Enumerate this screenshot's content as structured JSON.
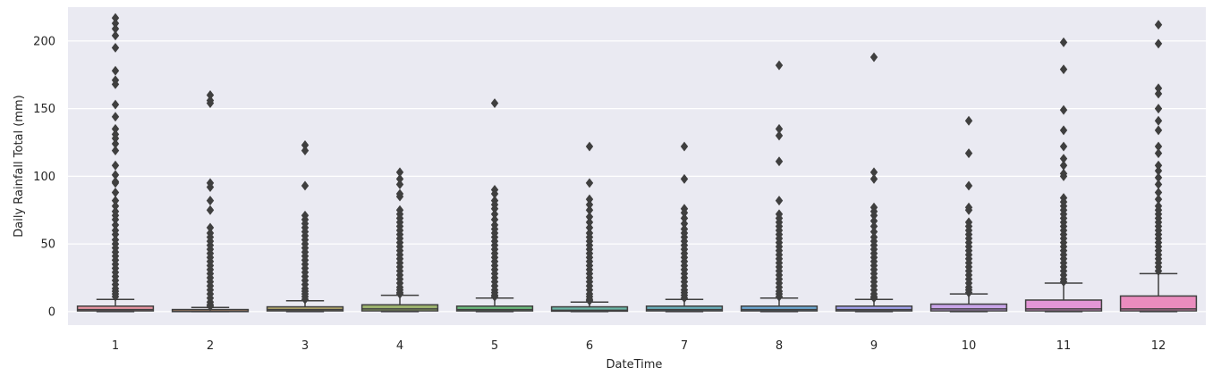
{
  "chart_data": {
    "type": "box",
    "xlabel": "DateTime",
    "ylabel": "Daily Rainfall Total (mm)",
    "ylim": [
      -10,
      225
    ],
    "yticks": [
      0,
      50,
      100,
      150,
      200
    ],
    "grid": true,
    "categories": [
      "1",
      "2",
      "3",
      "4",
      "5",
      "6",
      "7",
      "8",
      "9",
      "10",
      "11",
      "12"
    ],
    "colors": [
      "#ea96a3",
      "#d9a17a",
      "#b6ab6d",
      "#9cb26e",
      "#6dbc7e",
      "#6bb6a6",
      "#6ab0bd",
      "#6ca9d4",
      "#a3a3ef",
      "#c8a4e8",
      "#e396d6",
      "#ea8cbe"
    ],
    "boxes": [
      {
        "category": "1",
        "q1": 0.5,
        "median": 1.5,
        "q3": 4,
        "whisker_low": 0,
        "whisker_high": 9,
        "outliers": [
          217,
          213,
          209,
          204,
          195,
          178,
          171,
          168,
          153,
          144,
          135,
          131,
          128,
          124,
          119,
          108,
          101,
          96,
          95,
          88,
          82,
          78,
          74,
          71,
          68,
          64,
          60,
          57,
          53,
          50,
          47,
          44,
          41,
          38,
          35,
          32,
          29,
          26,
          23,
          20,
          17,
          15,
          13,
          11
        ]
      },
      {
        "category": "2",
        "q1": 0,
        "median": 0.2,
        "q3": 1.5,
        "whisker_low": 0,
        "whisker_high": 3,
        "outliers": [
          160,
          156,
          154,
          95,
          92,
          82,
          75,
          62,
          58,
          55,
          52,
          49,
          46,
          43,
          40,
          37,
          34,
          31,
          28,
          25,
          22,
          19,
          16,
          13,
          10,
          7,
          5,
          4
        ]
      },
      {
        "category": "3",
        "q1": 0.5,
        "median": 1.5,
        "q3": 3.5,
        "whisker_low": 0,
        "whisker_high": 8,
        "outliers": [
          123,
          119,
          93,
          71,
          68,
          65,
          62,
          59,
          56,
          53,
          50,
          47,
          44,
          41,
          38,
          35,
          32,
          29,
          26,
          23,
          20,
          17,
          15,
          13,
          11,
          9
        ]
      },
      {
        "category": "4",
        "q1": 0.5,
        "median": 2,
        "q3": 5,
        "whisker_low": 0,
        "whisker_high": 12,
        "outliers": [
          103,
          98,
          94,
          87,
          85,
          75,
          72,
          69,
          66,
          63,
          60,
          57,
          54,
          51,
          48,
          45,
          42,
          39,
          36,
          33,
          30,
          27,
          24,
          21,
          18,
          16,
          14,
          13
        ]
      },
      {
        "category": "5",
        "q1": 0.5,
        "median": 1.5,
        "q3": 4,
        "whisker_low": 0,
        "whisker_high": 10,
        "outliers": [
          154,
          90,
          87,
          82,
          79,
          76,
          72,
          68,
          64,
          61,
          58,
          55,
          52,
          49,
          46,
          43,
          40,
          37,
          34,
          31,
          28,
          25,
          22,
          19,
          16,
          14,
          12,
          11
        ]
      },
      {
        "category": "6",
        "q1": 0.3,
        "median": 1,
        "q3": 3.5,
        "whisker_low": 0,
        "whisker_high": 7,
        "outliers": [
          122,
          95,
          83,
          79,
          75,
          70,
          66,
          62,
          58,
          55,
          52,
          49,
          46,
          43,
          40,
          37,
          34,
          31,
          28,
          25,
          22,
          19,
          16,
          13,
          11,
          9,
          8
        ]
      },
      {
        "category": "7",
        "q1": 0.5,
        "median": 1.5,
        "q3": 4,
        "whisker_low": 0,
        "whisker_high": 9,
        "outliers": [
          122,
          98,
          76,
          73,
          69,
          65,
          61,
          58,
          55,
          52,
          49,
          46,
          43,
          40,
          37,
          34,
          31,
          28,
          25,
          22,
          19,
          16,
          14,
          12,
          10
        ]
      },
      {
        "category": "8",
        "q1": 0.5,
        "median": 1.5,
        "q3": 4,
        "whisker_low": 0,
        "whisker_high": 10,
        "outliers": [
          182,
          135,
          130,
          111,
          82,
          72,
          69,
          66,
          63,
          60,
          57,
          54,
          51,
          48,
          45,
          42,
          39,
          36,
          33,
          30,
          27,
          24,
          21,
          18,
          15,
          13,
          11
        ]
      },
      {
        "category": "9",
        "q1": 0.5,
        "median": 1.5,
        "q3": 4,
        "whisker_low": 0,
        "whisker_high": 9,
        "outliers": [
          188,
          103,
          98,
          77,
          74,
          71,
          67,
          63,
          59,
          55,
          52,
          49,
          46,
          43,
          40,
          37,
          34,
          31,
          28,
          25,
          22,
          19,
          16,
          13,
          11,
          10
        ]
      },
      {
        "category": "10",
        "q1": 0.5,
        "median": 2,
        "q3": 5.5,
        "whisker_low": 0,
        "whisker_high": 13,
        "outliers": [
          141,
          117,
          93,
          77,
          75,
          66,
          63,
          60,
          57,
          54,
          51,
          48,
          45,
          42,
          39,
          36,
          33,
          30,
          27,
          24,
          21,
          18,
          16,
          14
        ]
      },
      {
        "category": "11",
        "q1": 0.5,
        "median": 2,
        "q3": 8.5,
        "whisker_low": 0,
        "whisker_high": 21,
        "outliers": [
          199,
          179,
          149,
          134,
          122,
          113,
          108,
          102,
          100,
          84,
          81,
          78,
          75,
          72,
          69,
          66,
          63,
          60,
          57,
          54,
          51,
          48,
          45,
          42,
          39,
          36,
          33,
          30,
          27,
          24,
          22
        ]
      },
      {
        "category": "12",
        "q1": 0.5,
        "median": 2,
        "q3": 11.5,
        "whisker_low": 0,
        "whisker_high": 28,
        "outliers": [
          212,
          198,
          165,
          161,
          150,
          141,
          134,
          122,
          117,
          108,
          104,
          99,
          94,
          88,
          83,
          78,
          75,
          72,
          69,
          66,
          63,
          60,
          57,
          54,
          51,
          48,
          45,
          42,
          39,
          36,
          33,
          30
        ]
      }
    ]
  }
}
